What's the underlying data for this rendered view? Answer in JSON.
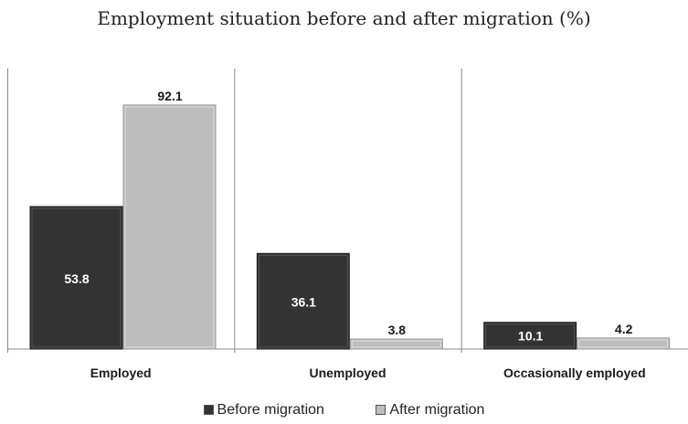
{
  "title": "Employment situation before and after migration (%)",
  "colors": {
    "before": "#333333",
    "after": "#bdbdbd",
    "axis": "#888888",
    "text": "#1a1a1a"
  },
  "chart_data": {
    "type": "bar",
    "title": "Employment situation before and after migration (%)",
    "categories": [
      "Employed",
      "Unemployed",
      "Occasionally employed"
    ],
    "series": [
      {
        "name": "Before migration",
        "values": [
          53.8,
          36.1,
          10.1
        ]
      },
      {
        "name": "After migration",
        "values": [
          92.1,
          3.8,
          4.2
        ]
      }
    ],
    "ylim": [
      0,
      100
    ],
    "grid": false,
    "legend": "bottom",
    "value_labels": true
  },
  "legend": {
    "before": "Before migration",
    "after": "After migration"
  }
}
